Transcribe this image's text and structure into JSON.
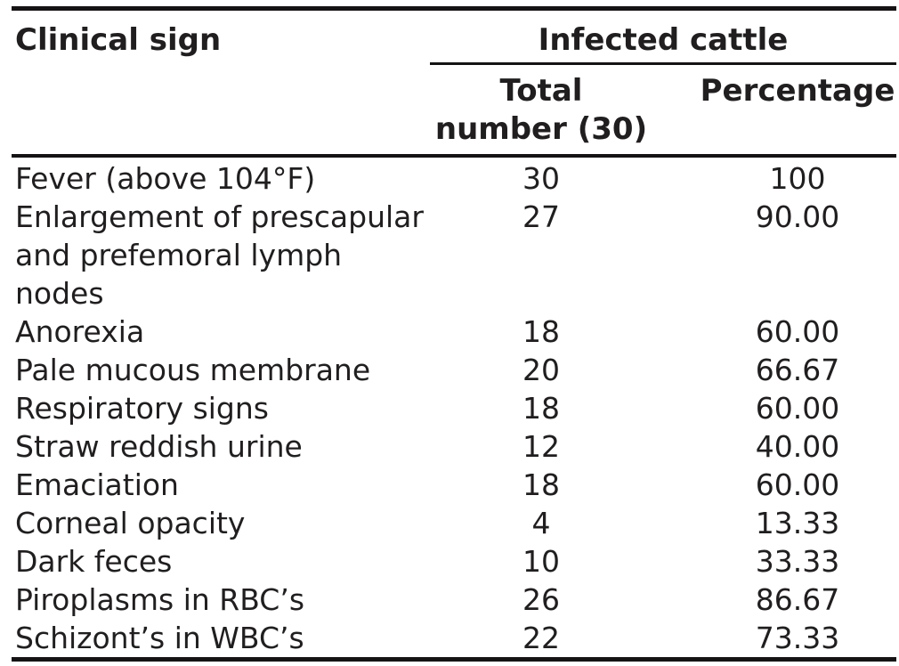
{
  "table": {
    "title_column_header": "Clinical sign",
    "group_header": "Infected cattle",
    "subheaders": {
      "total": "Total number (30)",
      "percentage": "Percentage"
    },
    "rows": [
      {
        "sign": "Fever (above 104°F)",
        "total": "30",
        "percentage": "100"
      },
      {
        "sign": "Enlargement of prescapular and prefemoral lymph nodes",
        "total": "27",
        "percentage": "90.00"
      },
      {
        "sign": "Anorexia",
        "total": "18",
        "percentage": "60.00"
      },
      {
        "sign": "Pale mucous membrane",
        "total": "20",
        "percentage": "66.67"
      },
      {
        "sign": "Respiratory signs",
        "total": "18",
        "percentage": "60.00"
      },
      {
        "sign": "Straw reddish urine",
        "total": "12",
        "percentage": "40.00"
      },
      {
        "sign": "Emaciation",
        "total": "18",
        "percentage": "60.00"
      },
      {
        "sign": "Corneal opacity",
        "total": "4",
        "percentage": "13.33"
      },
      {
        "sign": "Dark feces",
        "total": "10",
        "percentage": "33.33"
      },
      {
        "sign": "Piroplasms in RBC’s",
        "total": "26",
        "percentage": "86.67"
      },
      {
        "sign": "Schizont’s in WBC’s",
        "total": "22",
        "percentage": "73.33"
      }
    ],
    "colors": {
      "text": "#211e1f",
      "rule": "#161314",
      "background": "#ffffff"
    }
  }
}
